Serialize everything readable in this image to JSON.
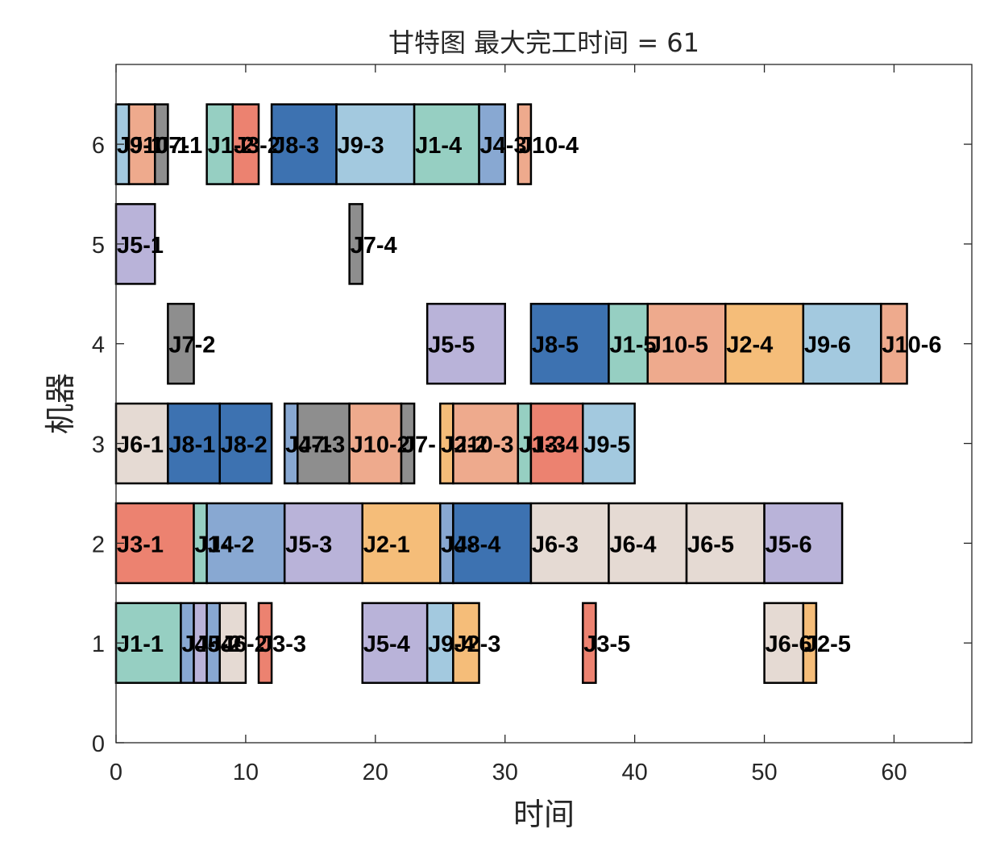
{
  "chart_data": {
    "type": "gantt",
    "title": "甘特图 最大完工时间 = 61",
    "xlabel": "时间",
    "ylabel": "机器",
    "xlim": [
      0,
      66
    ],
    "ylim": [
      0,
      6.8
    ],
    "xticks": [
      0,
      10,
      20,
      30,
      40,
      50,
      60
    ],
    "yticks": [
      0,
      1,
      2,
      3,
      4,
      5,
      6
    ],
    "grid": false,
    "job_colors": {
      "J1": "#96cfc2",
      "J2": "#f5bd79",
      "J3": "#ec8270",
      "J4": "#88a8d2",
      "J5": "#b9b3d9",
      "J6": "#e5dad3",
      "J7": "#8e8e8e",
      "J8": "#3d72b1",
      "J9": "#a3c9df",
      "J10": "#eeaa8d"
    },
    "operations": [
      {
        "machine": 6,
        "start": 0,
        "end": 1,
        "label": "J9-1",
        "job": "J9"
      },
      {
        "machine": 6,
        "start": 1,
        "end": 3,
        "label": "J10-1",
        "job": "J10"
      },
      {
        "machine": 6,
        "start": 3,
        "end": 4,
        "label": "J7-1",
        "job": "J7"
      },
      {
        "machine": 6,
        "start": 7,
        "end": 9,
        "label": "J1-2",
        "job": "J1"
      },
      {
        "machine": 6,
        "start": 9,
        "end": 11,
        "label": "J3-2",
        "job": "J3"
      },
      {
        "machine": 6,
        "start": 12,
        "end": 17,
        "label": "J8-3",
        "job": "J8"
      },
      {
        "machine": 6,
        "start": 17,
        "end": 23,
        "label": "J9-3",
        "job": "J9"
      },
      {
        "machine": 6,
        "start": 23,
        "end": 28,
        "label": "J1-4",
        "job": "J1"
      },
      {
        "machine": 6,
        "start": 28,
        "end": 30,
        "label": "J4-3",
        "job": "J4"
      },
      {
        "machine": 6,
        "start": 31,
        "end": 32,
        "label": "J10-4",
        "job": "J10"
      },
      {
        "machine": 5,
        "start": 0,
        "end": 3,
        "label": "J5-1",
        "job": "J5"
      },
      {
        "machine": 5,
        "start": 18,
        "end": 19,
        "label": "J7-4",
        "job": "J7"
      },
      {
        "machine": 4,
        "start": 4,
        "end": 6,
        "label": "J7-2",
        "job": "J7"
      },
      {
        "machine": 4,
        "start": 24,
        "end": 30,
        "label": "J5-5",
        "job": "J5"
      },
      {
        "machine": 4,
        "start": 32,
        "end": 38,
        "label": "J8-5",
        "job": "J8"
      },
      {
        "machine": 4,
        "start": 38,
        "end": 41,
        "label": "J1-5",
        "job": "J1"
      },
      {
        "machine": 4,
        "start": 41,
        "end": 47,
        "label": "J10-5",
        "job": "J10"
      },
      {
        "machine": 4,
        "start": 47,
        "end": 53,
        "label": "J2-4",
        "job": "J2"
      },
      {
        "machine": 4,
        "start": 53,
        "end": 59,
        "label": "J9-6",
        "job": "J9"
      },
      {
        "machine": 4,
        "start": 59,
        "end": 61,
        "label": "J10-6",
        "job": "J10"
      },
      {
        "machine": 3,
        "start": 0,
        "end": 4,
        "label": "J6-1",
        "job": "J6"
      },
      {
        "machine": 3,
        "start": 4,
        "end": 8,
        "label": "J8-1",
        "job": "J8"
      },
      {
        "machine": 3,
        "start": 8,
        "end": 12,
        "label": "J8-2",
        "job": "J8"
      },
      {
        "machine": 3,
        "start": 13,
        "end": 14,
        "label": "J4-1",
        "job": "J4"
      },
      {
        "machine": 3,
        "start": 14,
        "end": 18,
        "label": "J7-3",
        "job": "J7"
      },
      {
        "machine": 3,
        "start": 18,
        "end": 22,
        "label": "J10-2",
        "job": "J10"
      },
      {
        "machine": 3,
        "start": 22,
        "end": 23,
        "label": "J7-",
        "job": "J7"
      },
      {
        "machine": 3,
        "start": 25,
        "end": 26,
        "label": "J2-2",
        "job": "J2"
      },
      {
        "machine": 3,
        "start": 26,
        "end": 31,
        "label": "J10-3",
        "job": "J10"
      },
      {
        "machine": 3,
        "start": 31,
        "end": 32,
        "label": "J1-3",
        "job": "J1"
      },
      {
        "machine": 3,
        "start": 32,
        "end": 36,
        "label": "J3-4",
        "job": "J3"
      },
      {
        "machine": 3,
        "start": 36,
        "end": 40,
        "label": "J9-5",
        "job": "J9"
      },
      {
        "machine": 2,
        "start": 0,
        "end": 6,
        "label": "J3-1",
        "job": "J3"
      },
      {
        "machine": 2,
        "start": 6,
        "end": 7,
        "label": "J1-",
        "job": "J1"
      },
      {
        "machine": 2,
        "start": 7,
        "end": 13,
        "label": "J4-2",
        "job": "J4"
      },
      {
        "machine": 2,
        "start": 13,
        "end": 19,
        "label": "J5-3",
        "job": "J5"
      },
      {
        "machine": 2,
        "start": 19,
        "end": 25,
        "label": "J2-1",
        "job": "J2"
      },
      {
        "machine": 2,
        "start": 25,
        "end": 26,
        "label": "J4-",
        "job": "J4"
      },
      {
        "machine": 2,
        "start": 26,
        "end": 32,
        "label": "J8-4",
        "job": "J8"
      },
      {
        "machine": 2,
        "start": 32,
        "end": 38,
        "label": "J6-3",
        "job": "J6"
      },
      {
        "machine": 2,
        "start": 38,
        "end": 44,
        "label": "J6-4",
        "job": "J6"
      },
      {
        "machine": 2,
        "start": 44,
        "end": 50,
        "label": "J6-5",
        "job": "J6"
      },
      {
        "machine": 2,
        "start": 50,
        "end": 56,
        "label": "J5-6",
        "job": "J5"
      },
      {
        "machine": 1,
        "start": 0,
        "end": 5,
        "label": "J1-1",
        "job": "J1"
      },
      {
        "machine": 1,
        "start": 5,
        "end": 6,
        "label": "J4-",
        "job": "J4"
      },
      {
        "machine": 1,
        "start": 6,
        "end": 7,
        "label": "J5-2",
        "job": "J5"
      },
      {
        "machine": 1,
        "start": 7,
        "end": 8,
        "label": "J4-",
        "job": "J4"
      },
      {
        "machine": 1,
        "start": 8,
        "end": 10,
        "label": "J6-2",
        "job": "J6"
      },
      {
        "machine": 1,
        "start": 11,
        "end": 12,
        "label": "J3-3",
        "job": "J3"
      },
      {
        "machine": 1,
        "start": 19,
        "end": 24,
        "label": "J5-4",
        "job": "J5"
      },
      {
        "machine": 1,
        "start": 24,
        "end": 26,
        "label": "J9-4",
        "job": "J9"
      },
      {
        "machine": 1,
        "start": 26,
        "end": 28,
        "label": "J2-3",
        "job": "J2"
      },
      {
        "machine": 1,
        "start": 36,
        "end": 37,
        "label": "J3-5",
        "job": "J3"
      },
      {
        "machine": 1,
        "start": 50,
        "end": 53,
        "label": "J6-6",
        "job": "J6"
      },
      {
        "machine": 1,
        "start": 53,
        "end": 54,
        "label": "J2-5",
        "job": "J2"
      }
    ]
  }
}
